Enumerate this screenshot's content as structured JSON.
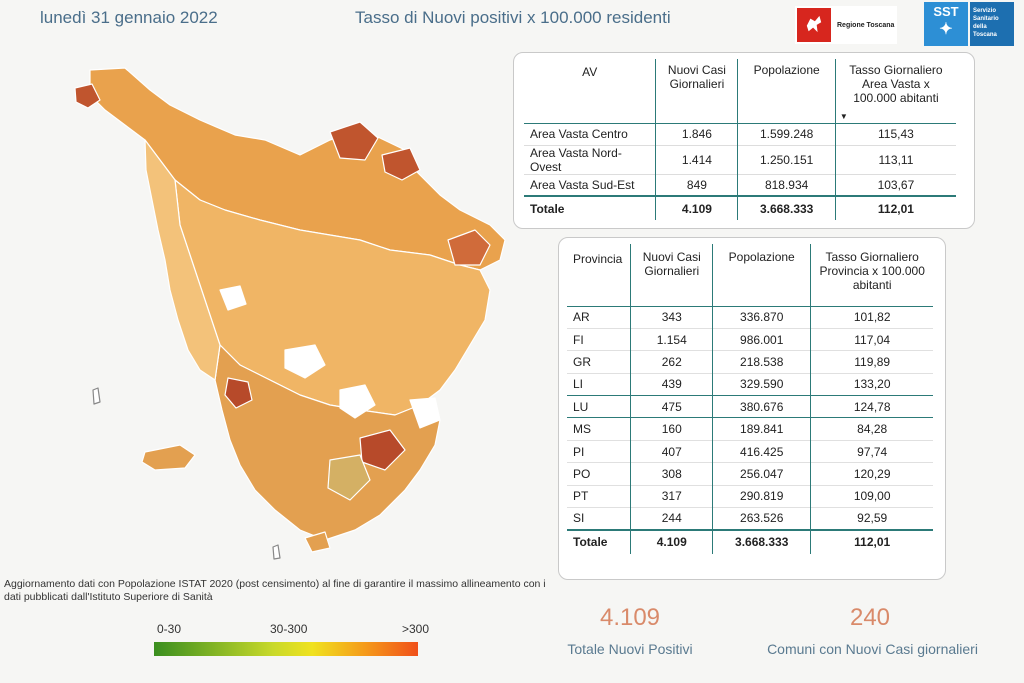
{
  "header": {
    "date": "lunedì 31 gennaio 2022",
    "title": "Tasso di Nuovi positivi x 100.000 residenti",
    "logo_region": "Regione Toscana",
    "logo_sst_short": "SST",
    "logo_sst_full": "Servizio Sanitario della Toscana"
  },
  "av_table": {
    "headers": [
      "AV",
      "Nuovi Casi Giornalieri",
      "Popolazione",
      "Tasso Giornaliero Area Vasta x 100.000 abitanti"
    ],
    "rows": [
      [
        "Area Vasta Centro",
        "1.846",
        "1.599.248",
        "115,43"
      ],
      [
        "Area Vasta Nord-Ovest",
        "1.414",
        "1.250.151",
        "113,11"
      ],
      [
        "Area Vasta Sud-Est",
        "849",
        "818.934",
        "103,67"
      ]
    ],
    "total": [
      "Totale",
      "4.109",
      "3.668.333",
      "112,01"
    ]
  },
  "prov_table": {
    "headers": [
      "Provincia",
      "Nuovi Casi Giornalieri",
      "Popolazione",
      "Tasso Giornaliero Provincia x 100.000 abitanti"
    ],
    "rows": [
      [
        "AR",
        "343",
        "336.870",
        "101,82"
      ],
      [
        "FI",
        "1.154",
        "986.001",
        "117,04"
      ],
      [
        "GR",
        "262",
        "218.538",
        "119,89"
      ],
      [
        "LI",
        "439",
        "329.590",
        "133,20"
      ],
      [
        "LU",
        "475",
        "380.676",
        "124,78"
      ],
      [
        "MS",
        "160",
        "189.841",
        "84,28"
      ],
      [
        "PI",
        "407",
        "416.425",
        "97,74"
      ],
      [
        "PO",
        "308",
        "256.047",
        "120,29"
      ],
      [
        "PT",
        "317",
        "290.819",
        "109,00"
      ],
      [
        "SI",
        "244",
        "263.526",
        "92,59"
      ]
    ],
    "total": [
      "Totale",
      "4.109",
      "3.668.333",
      "112,01"
    ]
  },
  "note": "Aggiornamento dati con Popolazione ISTAT 2020 (post censimento) al fine di garantire il massimo allineamento con i dati pubblicati dall'Istituto Superiore di Sanità",
  "legend": {
    "low": "0-30",
    "mid": "30-300",
    "high": ">300",
    "colors": [
      "#3a8e1f",
      "#f0e21f",
      "#f0501a"
    ]
  },
  "kpi": {
    "total_value": "4.109",
    "total_label": "Totale Nuovi Positivi",
    "comuni_value": "240",
    "comuni_label": "Comuni con Nuovi Casi giornalieri"
  },
  "colors": {
    "accent": "#4a6e8a",
    "kpi_value": "#d98a6a",
    "map_light": "#f3c27a",
    "map_mid": "#e9a24d",
    "map_dark": "#c0552e"
  }
}
